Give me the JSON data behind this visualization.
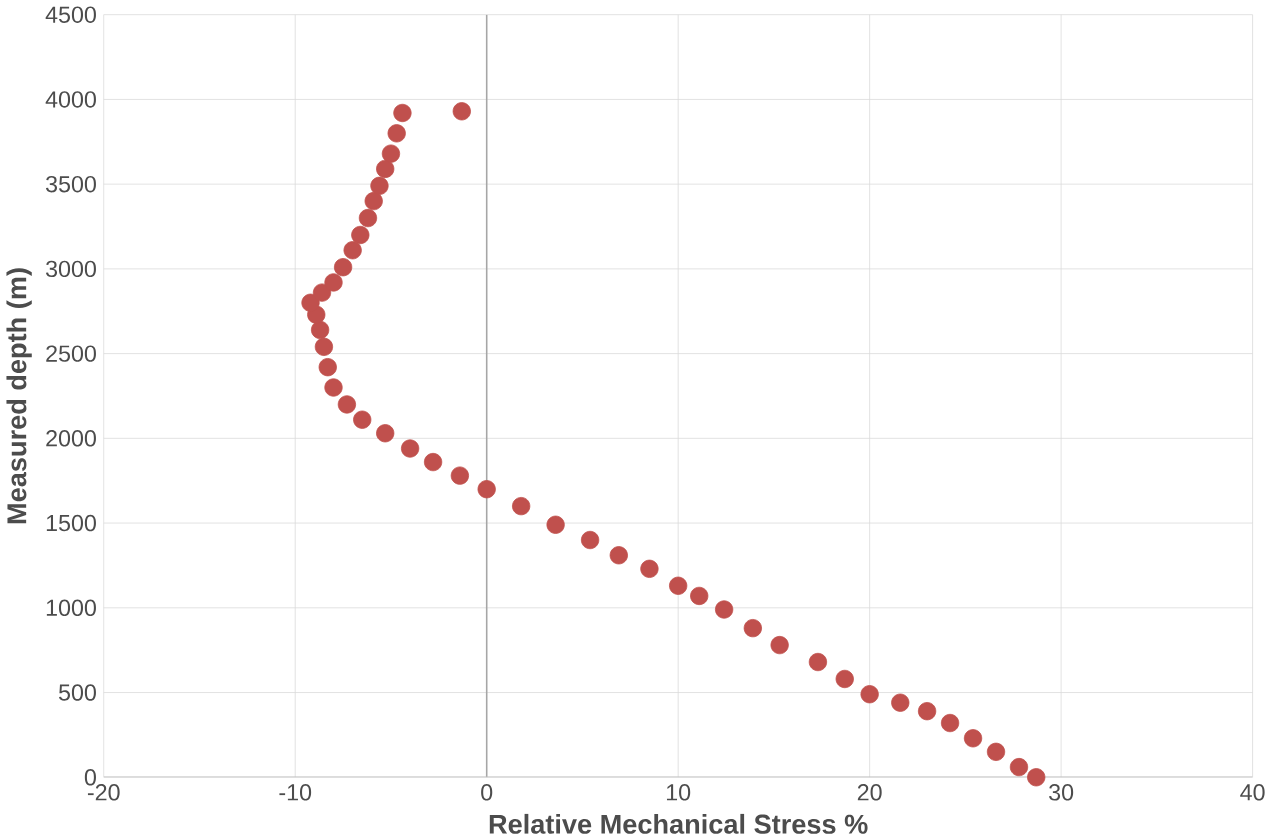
{
  "chart_data": {
    "type": "scatter",
    "xlabel": "Relative Mechanical Stress %",
    "ylabel": "Measured depth (m)",
    "xlim": [
      -20,
      40
    ],
    "xticks": [
      -20,
      -10,
      0,
      10,
      20,
      30,
      40
    ],
    "ylim": [
      0,
      4500
    ],
    "yticks": [
      0,
      500,
      1000,
      1500,
      2000,
      2500,
      3000,
      3500,
      4000,
      4500
    ],
    "grid": true,
    "marker": "circle",
    "series": [
      {
        "color": "#c0504d",
        "x": [
          28.7,
          27.8,
          26.6,
          25.4,
          24.2,
          23.0,
          21.6,
          20.0,
          18.7,
          17.3,
          15.3,
          13.9,
          12.4,
          11.1,
          10.0,
          8.5,
          6.9,
          5.4,
          3.6,
          1.8,
          0,
          -1.4,
          -2.8,
          -4.0,
          -5.3,
          -6.5,
          -7.3,
          -8.0,
          -8.3,
          -8.5,
          -8.7,
          -8.9,
          -9.2,
          -8.6,
          -8.0,
          -7.5,
          -7.0,
          -6.6,
          -6.2,
          -5.9,
          -5.6,
          -5.3,
          -5.0,
          -4.7,
          -4.4,
          -1.3
        ],
        "values": [
          0,
          60,
          150,
          230,
          320,
          390,
          440,
          490,
          580,
          680,
          780,
          880,
          990,
          1070,
          1130,
          1230,
          1310,
          1400,
          1490,
          1600,
          1700,
          1780,
          1860,
          1940,
          2030,
          2110,
          2200,
          2300,
          2420,
          2540,
          2640,
          2730,
          2800,
          2860,
          2920,
          3010,
          3110,
          3200,
          3300,
          3400,
          3490,
          3590,
          3680,
          3800,
          3920,
          3930
        ]
      }
    ]
  }
}
